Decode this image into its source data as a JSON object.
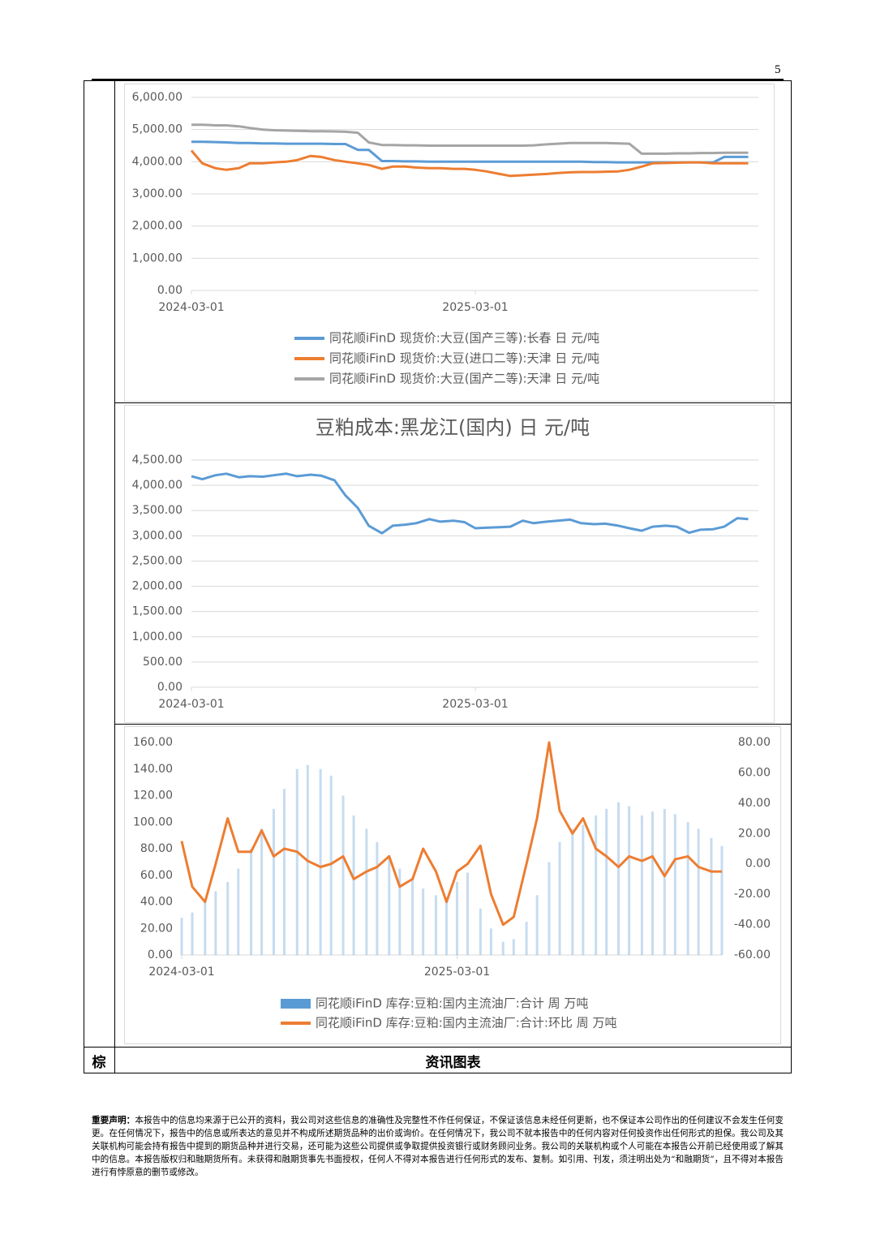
{
  "page_number": "5",
  "chart_data": [
    {
      "type": "line",
      "x": [
        "2024-03-01",
        "2024-03-15",
        "2024-04-01",
        "2024-04-15",
        "2024-05-01",
        "2024-05-15",
        "2024-06-01",
        "2024-06-15",
        "2024-07-01",
        "2024-07-15",
        "2024-08-01",
        "2024-08-15",
        "2024-09-01",
        "2024-09-15",
        "2024-10-01",
        "2024-10-15",
        "2024-11-01",
        "2024-11-15",
        "2024-12-01",
        "2024-12-15",
        "2025-01-01",
        "2025-01-15",
        "2025-02-01",
        "2025-02-15",
        "2025-03-01",
        "2025-03-15",
        "2025-04-01",
        "2025-04-15",
        "2025-05-01",
        "2025-05-15",
        "2025-06-01",
        "2025-06-15",
        "2025-07-01",
        "2025-07-15",
        "2025-08-01",
        "2025-08-15",
        "2025-09-01",
        "2025-09-15",
        "2025-10-01",
        "2025-10-15",
        "2025-11-01",
        "2025-11-15",
        "2025-12-01",
        "2025-12-15",
        "2026-01-01",
        "2026-01-15",
        "2026-02-01",
        "2026-02-15"
      ],
      "xlim": [
        "2024-03-01",
        "2026-02-28"
      ],
      "xticks": [
        "2024-03-01",
        "2025-03-01"
      ],
      "ylim": [
        0,
        6000
      ],
      "yticks": [
        {
          "value": 0,
          "label": "0.00"
        },
        {
          "value": 1000,
          "label": "1,000.00"
        },
        {
          "value": 2000,
          "label": "2,000.00"
        },
        {
          "value": 3000,
          "label": "3,000.00"
        },
        {
          "value": 4000,
          "label": "4,000.00"
        },
        {
          "value": 5000,
          "label": "5,000.00"
        },
        {
          "value": 6000,
          "label": "6,000.00"
        }
      ],
      "grid": true,
      "legend": "bottom",
      "series": [
        {
          "name": "同花顺iFinD 现货价:大豆(国产三等):长春 日 元/吨",
          "color": "#5b9bd5",
          "values": [
            4620,
            4620,
            4610,
            4600,
            4580,
            4580,
            4570,
            4570,
            4560,
            4560,
            4560,
            4560,
            4550,
            4550,
            4370,
            4370,
            4020,
            4020,
            4010,
            4010,
            4000,
            4000,
            4000,
            4000,
            4000,
            4000,
            4000,
            4000,
            4000,
            4000,
            4000,
            4000,
            4000,
            4000,
            3990,
            3990,
            3980,
            3980,
            3980,
            3980,
            3980,
            3980,
            3980,
            3980,
            3980,
            4150,
            4150,
            4150
          ]
        },
        {
          "name": "同花顺iFinD 现货价:大豆(进口二等):天津 日 元/吨",
          "color": "#ed7d31",
          "values": [
            4350,
            3950,
            3800,
            3750,
            3800,
            3950,
            3950,
            3980,
            4000,
            4050,
            4180,
            4150,
            4050,
            4000,
            3950,
            3900,
            3780,
            3850,
            3850,
            3820,
            3800,
            3800,
            3780,
            3780,
            3750,
            3700,
            3620,
            3560,
            3580,
            3600,
            3620,
            3650,
            3670,
            3680,
            3680,
            3690,
            3700,
            3750,
            3850,
            3950,
            3960,
            3970,
            3980,
            3980,
            3950,
            3950,
            3950,
            3950
          ]
        },
        {
          "name": "同花顺iFinD 现货价:大豆(国产二等):天津 日 元/吨",
          "color": "#a5a5a5",
          "values": [
            5150,
            5150,
            5130,
            5130,
            5100,
            5050,
            5000,
            4980,
            4970,
            4960,
            4950,
            4950,
            4940,
            4930,
            4900,
            4600,
            4520,
            4520,
            4510,
            4510,
            4500,
            4500,
            4500,
            4500,
            4500,
            4500,
            4500,
            4500,
            4500,
            4510,
            4540,
            4560,
            4580,
            4580,
            4580,
            4580,
            4570,
            4560,
            4250,
            4250,
            4250,
            4260,
            4260,
            4270,
            4270,
            4280,
            4280,
            4280
          ]
        }
      ]
    },
    {
      "type": "line",
      "title": "豆粕成本:黑龙江(国内) 日 元/吨",
      "x": [
        "2024-03-01",
        "2024-03-15",
        "2024-04-01",
        "2024-04-15",
        "2024-05-01",
        "2024-05-15",
        "2024-06-01",
        "2024-06-15",
        "2024-07-01",
        "2024-07-15",
        "2024-08-01",
        "2024-08-15",
        "2024-09-01",
        "2024-09-15",
        "2024-10-01",
        "2024-10-15",
        "2024-11-01",
        "2024-11-15",
        "2024-12-01",
        "2024-12-15",
        "2025-01-01",
        "2025-01-15",
        "2025-02-01",
        "2025-02-15",
        "2025-03-01",
        "2025-03-15",
        "2025-04-01",
        "2025-04-15",
        "2025-05-01",
        "2025-05-15",
        "2025-06-01",
        "2025-06-15",
        "2025-07-01",
        "2025-07-15",
        "2025-08-01",
        "2025-08-15",
        "2025-09-01",
        "2025-09-15",
        "2025-10-01",
        "2025-10-15",
        "2025-11-01",
        "2025-11-15",
        "2025-12-01",
        "2025-12-15",
        "2026-01-01",
        "2026-01-15",
        "2026-02-01",
        "2026-02-15"
      ],
      "xlim": [
        "2024-03-01",
        "2026-02-28"
      ],
      "xticks": [
        "2024-03-01",
        "2025-03-01"
      ],
      "ylim": [
        0,
        4500
      ],
      "yticks": [
        {
          "value": 0,
          "label": "0.00"
        },
        {
          "value": 500,
          "label": "500.00"
        },
        {
          "value": 1000,
          "label": "1,000.00"
        },
        {
          "value": 1500,
          "label": "1,500.00"
        },
        {
          "value": 2000,
          "label": "2,000.00"
        },
        {
          "value": 2500,
          "label": "2,500.00"
        },
        {
          "value": 3000,
          "label": "3,000.00"
        },
        {
          "value": 3500,
          "label": "3,500.00"
        },
        {
          "value": 4000,
          "label": "4,000.00"
        },
        {
          "value": 4500,
          "label": "4,500.00"
        }
      ],
      "grid": true,
      "series": [
        {
          "color": "#5b9bd5",
          "values": [
            4180,
            4120,
            4200,
            4230,
            4160,
            4180,
            4170,
            4200,
            4230,
            4180,
            4210,
            4190,
            4100,
            3800,
            3550,
            3200,
            3050,
            3200,
            3220,
            3250,
            3330,
            3280,
            3300,
            3270,
            3150,
            3160,
            3170,
            3180,
            3300,
            3250,
            3280,
            3300,
            3320,
            3250,
            3230,
            3240,
            3200,
            3150,
            3100,
            3180,
            3200,
            3180,
            3060,
            3120,
            3130,
            3180,
            3350,
            3330
          ]
        }
      ]
    },
    {
      "type": "bar_line",
      "x": [
        "2024-03-01",
        "2024-03-15",
        "2024-04-01",
        "2024-04-15",
        "2024-05-01",
        "2024-05-15",
        "2024-06-01",
        "2024-06-15",
        "2024-07-01",
        "2024-07-15",
        "2024-08-01",
        "2024-08-15",
        "2024-09-01",
        "2024-09-15",
        "2024-10-01",
        "2024-10-15",
        "2024-11-01",
        "2024-11-15",
        "2024-12-01",
        "2024-12-15",
        "2025-01-01",
        "2025-01-15",
        "2025-02-01",
        "2025-02-15",
        "2025-03-01",
        "2025-03-15",
        "2025-04-01",
        "2025-04-15",
        "2025-05-01",
        "2025-05-15",
        "2025-06-01",
        "2025-06-15",
        "2025-07-01",
        "2025-07-15",
        "2025-08-01",
        "2025-08-15",
        "2025-09-01",
        "2025-09-15",
        "2025-10-01",
        "2025-10-15",
        "2025-11-01",
        "2025-11-15",
        "2025-12-01",
        "2025-12-15",
        "2026-01-01",
        "2026-01-15",
        "2026-02-01",
        "2026-02-15"
      ],
      "xlim": [
        "2024-03-01",
        "2026-02-15"
      ],
      "xticks": [
        "2024-03-01",
        "2025-03-01"
      ],
      "ylim": [
        0,
        160
      ],
      "yticks": [
        {
          "value": 0,
          "label": "0.00"
        },
        {
          "value": 20,
          "label": "20.00"
        },
        {
          "value": 40,
          "label": "40.00"
        },
        {
          "value": 60,
          "label": "60.00"
        },
        {
          "value": 80,
          "label": "80.00"
        },
        {
          "value": 100,
          "label": "100.00"
        },
        {
          "value": 120,
          "label": "120.00"
        },
        {
          "value": 140,
          "label": "140.00"
        },
        {
          "value": 160,
          "label": "160.00"
        }
      ],
      "y2lim": [
        -60,
        80
      ],
      "y2ticks": [
        {
          "value": -60,
          "label": "-60.00"
        },
        {
          "value": -40,
          "label": "-40.00"
        },
        {
          "value": -20,
          "label": "-20.00"
        },
        {
          "value": 0,
          "label": "0.00"
        },
        {
          "value": 20,
          "label": "20.00"
        },
        {
          "value": 40,
          "label": "40.00"
        },
        {
          "value": 60,
          "label": "60.00"
        },
        {
          "value": 80,
          "label": "80.00"
        }
      ],
      "grid": false,
      "legend": "bottom",
      "series": [
        {
          "name": "同花顺iFinD 库存:豆粕:国内主流油厂:合计 周 万吨",
          "type": "bar",
          "color": "#5b9bd5",
          "values": [
            28,
            32,
            40,
            48,
            55,
            65,
            80,
            95,
            110,
            125,
            140,
            143,
            140,
            135,
            120,
            105,
            95,
            85,
            75,
            65,
            58,
            50,
            45,
            40,
            55,
            62,
            35,
            20,
            10,
            12,
            25,
            45,
            70,
            85,
            95,
            98,
            105,
            110,
            115,
            112,
            105,
            108,
            110,
            106,
            100,
            95,
            88,
            82
          ]
        },
        {
          "name": "同花顺iFinD 库存:豆粕:国内主流油厂:合计:环比 周 万吨",
          "type": "line",
          "axis": "y2",
          "color": "#ed7d31",
          "values": [
            15,
            -15,
            -25,
            0,
            30,
            8,
            8,
            22,
            5,
            10,
            8,
            2,
            -2,
            0,
            5,
            -10,
            -5,
            -2,
            5,
            -15,
            -10,
            10,
            -5,
            -25,
            -5,
            0,
            12,
            -20,
            -40,
            -35,
            0,
            30,
            80,
            35,
            20,
            30,
            10,
            5,
            -2,
            5,
            2,
            5,
            -8,
            3,
            5,
            -2,
            -5,
            -5
          ]
        }
      ]
    }
  ],
  "table": {
    "side_label": "棕",
    "caption": "资讯图表"
  },
  "disclaimer": {
    "lead": "重要声明：",
    "text": "本报告中的信息均来源于已公开的资料，我公司对这些信息的准确性及完整性不作任何保证，不保证该信息未经任何更新，也不保证本公司作出的任何建议不会发生任何变更。在任何情况下，报告中的信息或所表达的意见并不构成所述期货品种的出价或询价。在任何情况下，我公司不就本报告中的任何内容对任何投资作出任何形式的担保。我公司及其关联机构可能会持有报告中提到的期货品种并进行交易，还可能为这些公司提供或争取提供投资银行或财务顾问业务。我公司的关联机构或个人可能在本报告公开前已经使用或了解其中的信息。本报告版权归和融期货所有。未获得和融期货事先书面授权，任何人不得对本报告进行任何形式的发布、复制。如引用、刊发，须注明出处为“和融期货”，且不得对本报告进行有悖原意的删节或修改。"
  }
}
